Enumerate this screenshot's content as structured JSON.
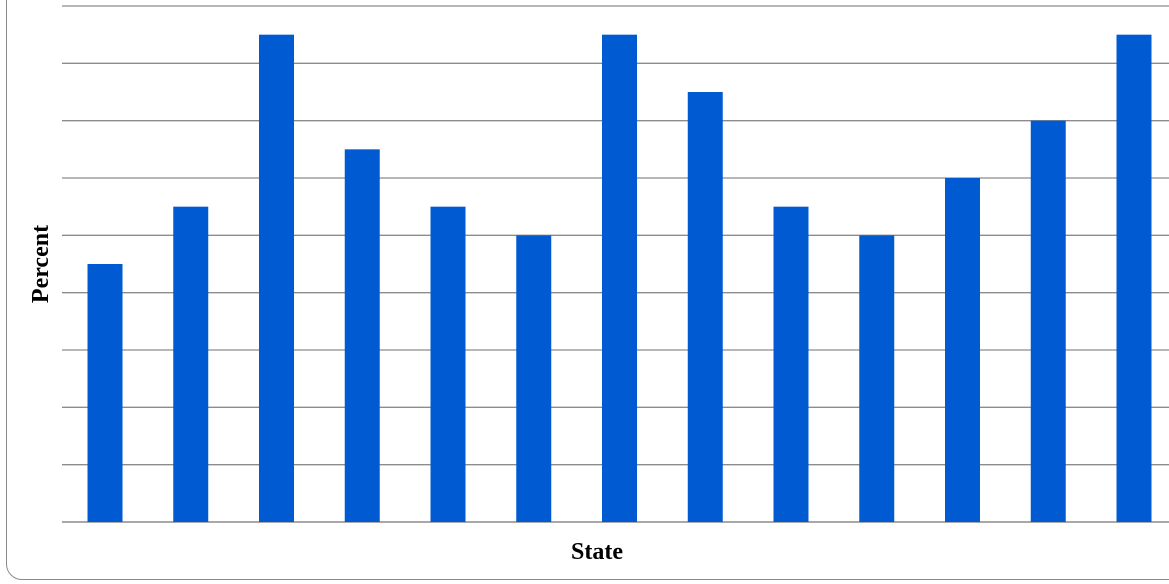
{
  "chart_data": {
    "type": "bar",
    "categories": [
      "",
      "",
      "",
      "",
      "",
      "",
      "",
      "",
      "",
      "",
      "",
      "",
      ""
    ],
    "values": [
      4.5,
      5.5,
      8.5,
      6.5,
      5.5,
      5.0,
      8.5,
      7.5,
      5.5,
      5.0,
      6.0,
      7.0,
      8.5
    ],
    "xlabel": "State",
    "ylabel": "Percent",
    "ylim": [
      0,
      9
    ],
    "grid": true,
    "bar_color": "#005BD3",
    "gridline_color": "#8c8c8c"
  }
}
